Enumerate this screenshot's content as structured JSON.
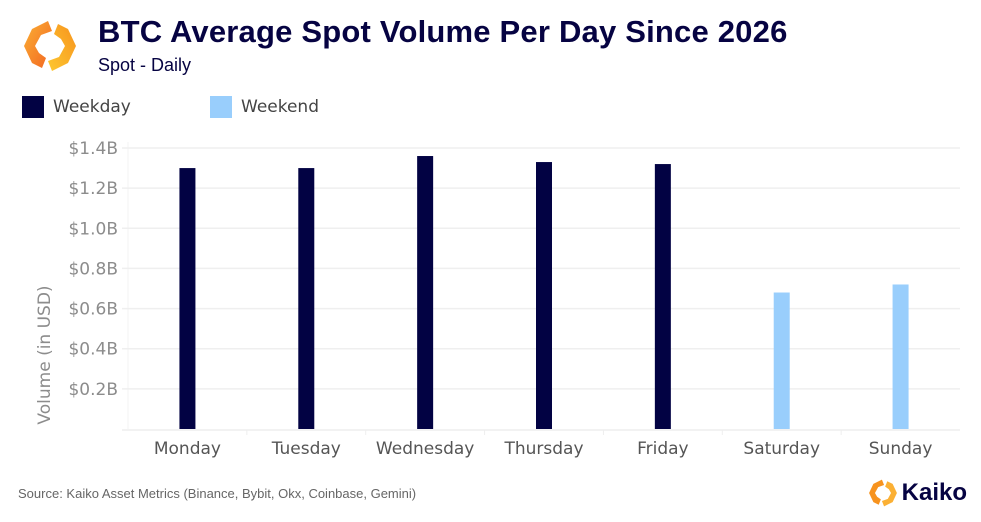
{
  "header": {
    "title": "BTC Average Spot Volume Per Day Since 2026",
    "subtitle": "Spot - Daily",
    "logo_icon": "kaiko-logo-icon"
  },
  "legend": [
    {
      "label": "Weekday",
      "color": "#020243"
    },
    {
      "label": "Weekend",
      "color": "#99cefc"
    }
  ],
  "footer": {
    "source": "Source: Kaiko Asset Metrics (Binance, Bybit, Okx, Coinbase, Gemini)",
    "brand": "Kaiko"
  },
  "colors": {
    "brand_orange": "#f7931e",
    "brand_yellow": "#fbb034",
    "title": "#060342",
    "grid": "#efefef"
  },
  "chart_data": {
    "type": "bar",
    "title": "BTC Average Spot Volume Per Day Since 2026",
    "subtitle": "Spot - Daily",
    "xlabel": "",
    "ylabel": "Volume (in USD)",
    "categories": [
      "Monday",
      "Tuesday",
      "Wednesday",
      "Thursday",
      "Friday",
      "Saturday",
      "Sunday"
    ],
    "values": [
      1.3,
      1.3,
      1.36,
      1.33,
      1.32,
      0.68,
      0.72
    ],
    "units": "USD billions",
    "groups": [
      "Weekday",
      "Weekday",
      "Weekday",
      "Weekday",
      "Weekday",
      "Weekend",
      "Weekend"
    ],
    "ylim": [
      0,
      1.4
    ],
    "yticks": [
      0.2,
      0.4,
      0.6,
      0.8,
      1.0,
      1.2,
      1.4
    ],
    "ytick_labels": [
      "$0.2B",
      "$0.4B",
      "$0.6B",
      "$0.8B",
      "$1.0B",
      "$1.2B",
      "$1.4B"
    ],
    "grid": true,
    "legend_position": "top-left"
  }
}
